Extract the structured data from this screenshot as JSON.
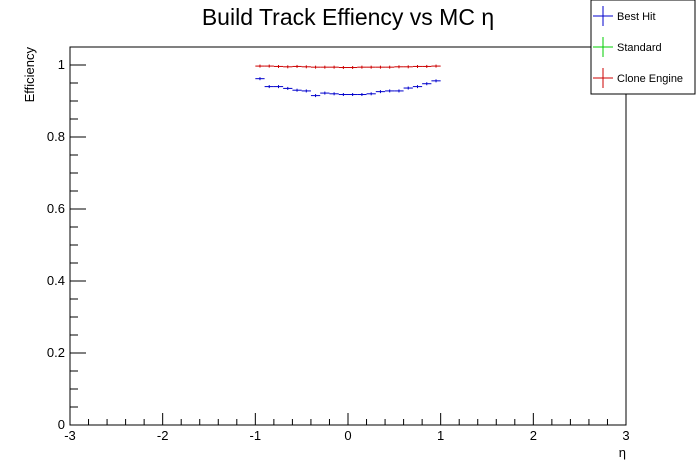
{
  "chart_data": {
    "type": "scatter",
    "title": "Build Track Effiency vs MC η",
    "xlabel": "η",
    "ylabel": "Efficiency",
    "xlim": [
      -3,
      3
    ],
    "ylim": [
      0,
      1.05
    ],
    "grid": false,
    "legend_position": "top-right",
    "x_ticks": [
      "-3",
      "-2",
      "-1",
      "0",
      "1",
      "2",
      "3"
    ],
    "y_ticks": [
      "0",
      "0.2",
      "0.4",
      "0.6",
      "0.8",
      "1"
    ],
    "x": [
      -0.95,
      -0.85,
      -0.75,
      -0.65,
      -0.55,
      -0.45,
      -0.35,
      -0.25,
      -0.15,
      -0.05,
      0.05,
      0.15,
      0.25,
      0.35,
      0.45,
      0.55,
      0.65,
      0.75,
      0.85,
      0.95
    ],
    "x_bin_width": 0.1,
    "series": [
      {
        "name": "Best Hit",
        "color": "#0000cc",
        "values": [
          0.962,
          0.94,
          0.94,
          0.935,
          0.93,
          0.928,
          0.915,
          0.922,
          0.92,
          0.918,
          0.918,
          0.918,
          0.92,
          0.926,
          0.928,
          0.928,
          0.936,
          0.94,
          0.948,
          0.956
        ]
      },
      {
        "name": "Standard",
        "color": "#00cc00",
        "values": []
      },
      {
        "name": "Clone Engine",
        "color": "#cc0000",
        "values": [
          0.997,
          0.997,
          0.996,
          0.995,
          0.996,
          0.995,
          0.994,
          0.994,
          0.994,
          0.993,
          0.993,
          0.994,
          0.994,
          0.994,
          0.994,
          0.995,
          0.995,
          0.996,
          0.996,
          0.997
        ]
      }
    ]
  }
}
